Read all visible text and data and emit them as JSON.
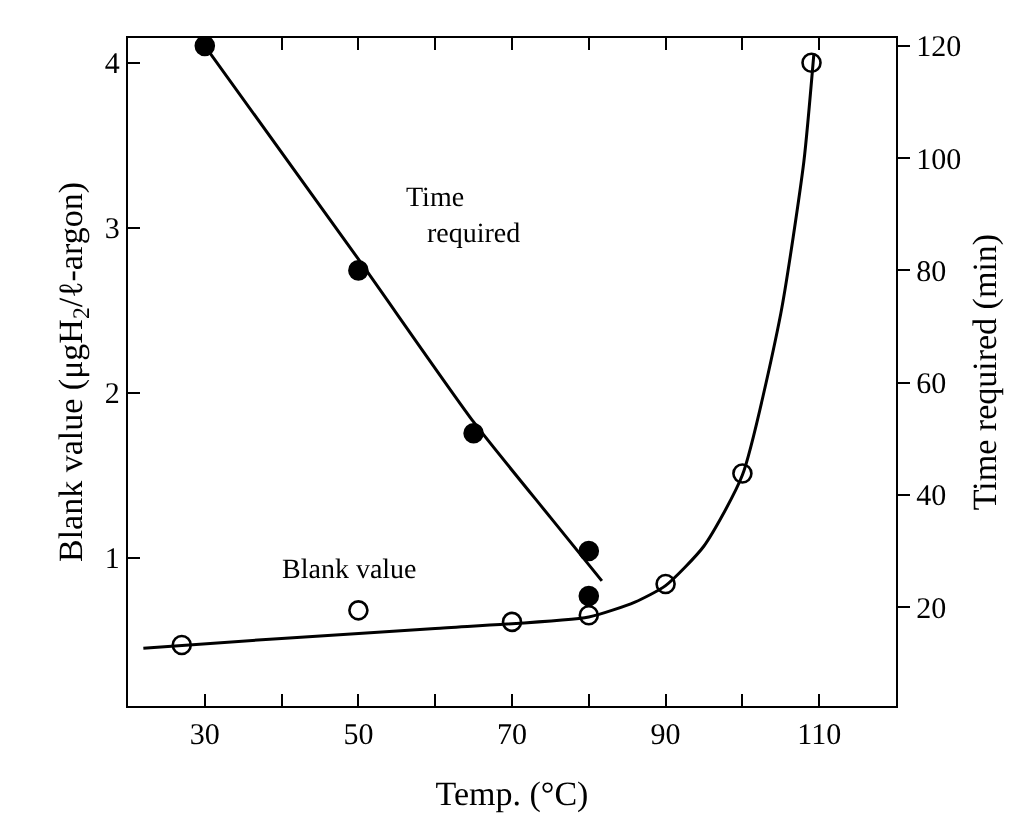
{
  "chart_data": {
    "type": "scatter",
    "xlabel": "Temp. (°C)",
    "ylabel": "Blank value (μgH$_{2}$/ℓ-argon)",
    "y2label": "Time required (min)",
    "xlim": [
      20,
      120
    ],
    "xticks": [
      {
        "value": 20,
        "label": null
      },
      30,
      {
        "value": 40,
        "label": null
      },
      50,
      {
        "value": 60,
        "label": null
      },
      70,
      {
        "value": 80,
        "label": null
      },
      90,
      {
        "value": 100,
        "label": null
      },
      110,
      {
        "value": 120,
        "label": null
      }
    ],
    "ylim": [
      0.1,
      4.15
    ],
    "yticks": [
      1,
      2,
      3,
      4
    ],
    "y2lim": [
      2.4,
      121.4
    ],
    "y2ticks": [
      20,
      40,
      60,
      80,
      100,
      120
    ],
    "series": [
      {
        "name": "Time required",
        "axis": "y2",
        "color": "#000000",
        "marker": "circle",
        "x": [
          30,
          50,
          65,
          80,
          80
        ],
        "values": [
          120,
          80,
          51,
          30,
          22
        ]
      },
      {
        "type": "line",
        "axis": "y2",
        "color": "#000000",
        "marker": "none",
        "line_style": "solid",
        "x": [
          30,
          50,
          65,
          75,
          81.7
        ],
        "values": [
          120,
          82,
          53,
          36,
          24.7
        ]
      },
      {
        "name": "Blank value",
        "axis": "y",
        "color": "#000000",
        "marker": "circle-open",
        "x": [
          27,
          50,
          70,
          80,
          90,
          100,
          109
        ],
        "values": [
          0.47,
          0.68,
          0.61,
          0.65,
          0.84,
          1.51,
          4.0
        ]
      },
      {
        "type": "line",
        "axis": "y",
        "color": "#000000",
        "marker": "none",
        "line_style": "solid",
        "x": [
          22,
          40,
          60,
          80,
          86,
          90,
          95,
          100,
          105,
          108,
          109.3
        ],
        "values": [
          0.45,
          0.51,
          0.57,
          0.64,
          0.73,
          0.83,
          1.07,
          1.5,
          2.48,
          3.4,
          4.05
        ]
      }
    ]
  }
}
